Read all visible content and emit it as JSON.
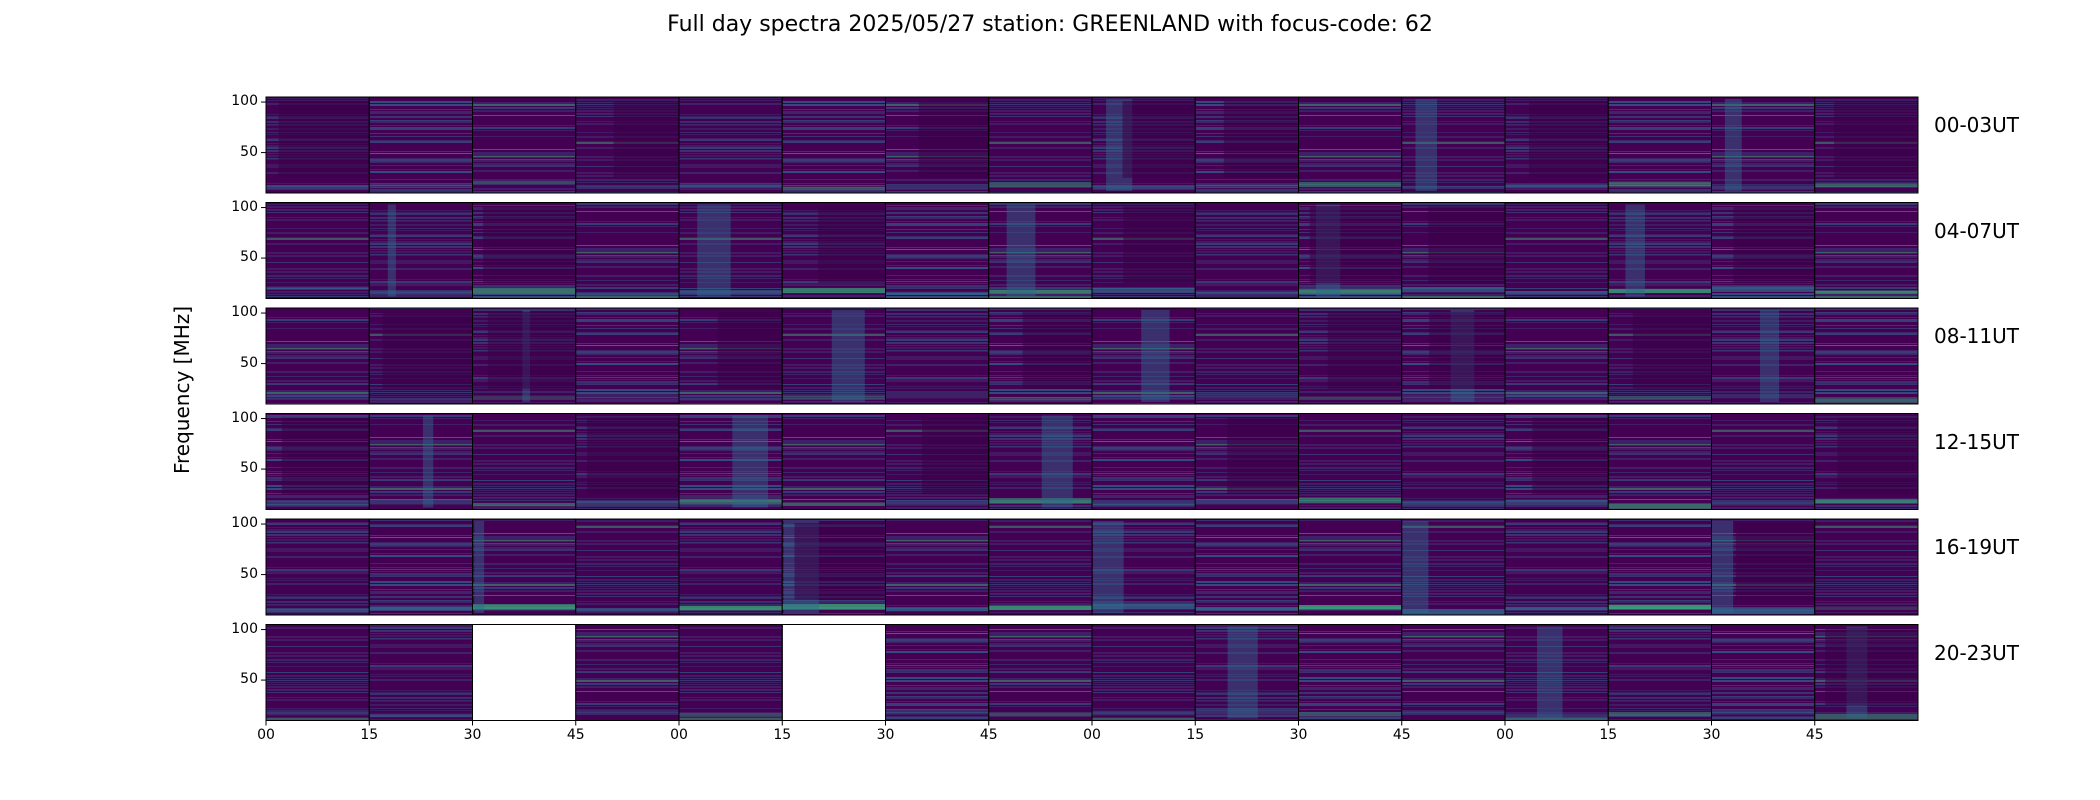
{
  "title": "Full day spectra 2025/05/27 station: GREENLAND with focus-code: 62",
  "ylabel": "Frequency [MHz]",
  "colormap": {
    "low": "#440154",
    "mid": "#31688e",
    "high": "#35b779",
    "peak": "#b4de2c"
  },
  "chart_data": {
    "type": "heatmap",
    "title": "Full day spectra 2025/05/27 station: GREENLAND with focus-code: 62",
    "ylabel": "Frequency [MHz]",
    "ytick_labels": [
      "100",
      "50"
    ],
    "ylim": [
      10,
      105
    ],
    "xtick_labels": [
      "00",
      "15",
      "30",
      "45",
      "00",
      "15",
      "30",
      "45",
      "00",
      "15",
      "30",
      "45",
      "00",
      "15",
      "30",
      "45"
    ],
    "panels_per_row": 16,
    "rows": [
      {
        "label": "00-03UT",
        "missing": []
      },
      {
        "label": "04-07UT",
        "missing": []
      },
      {
        "label": "08-11UT",
        "missing": []
      },
      {
        "label": "12-15UT",
        "missing": []
      },
      {
        "label": "16-19UT",
        "missing": []
      },
      {
        "label": "20-23UT",
        "missing": [
          2,
          5
        ]
      }
    ]
  }
}
